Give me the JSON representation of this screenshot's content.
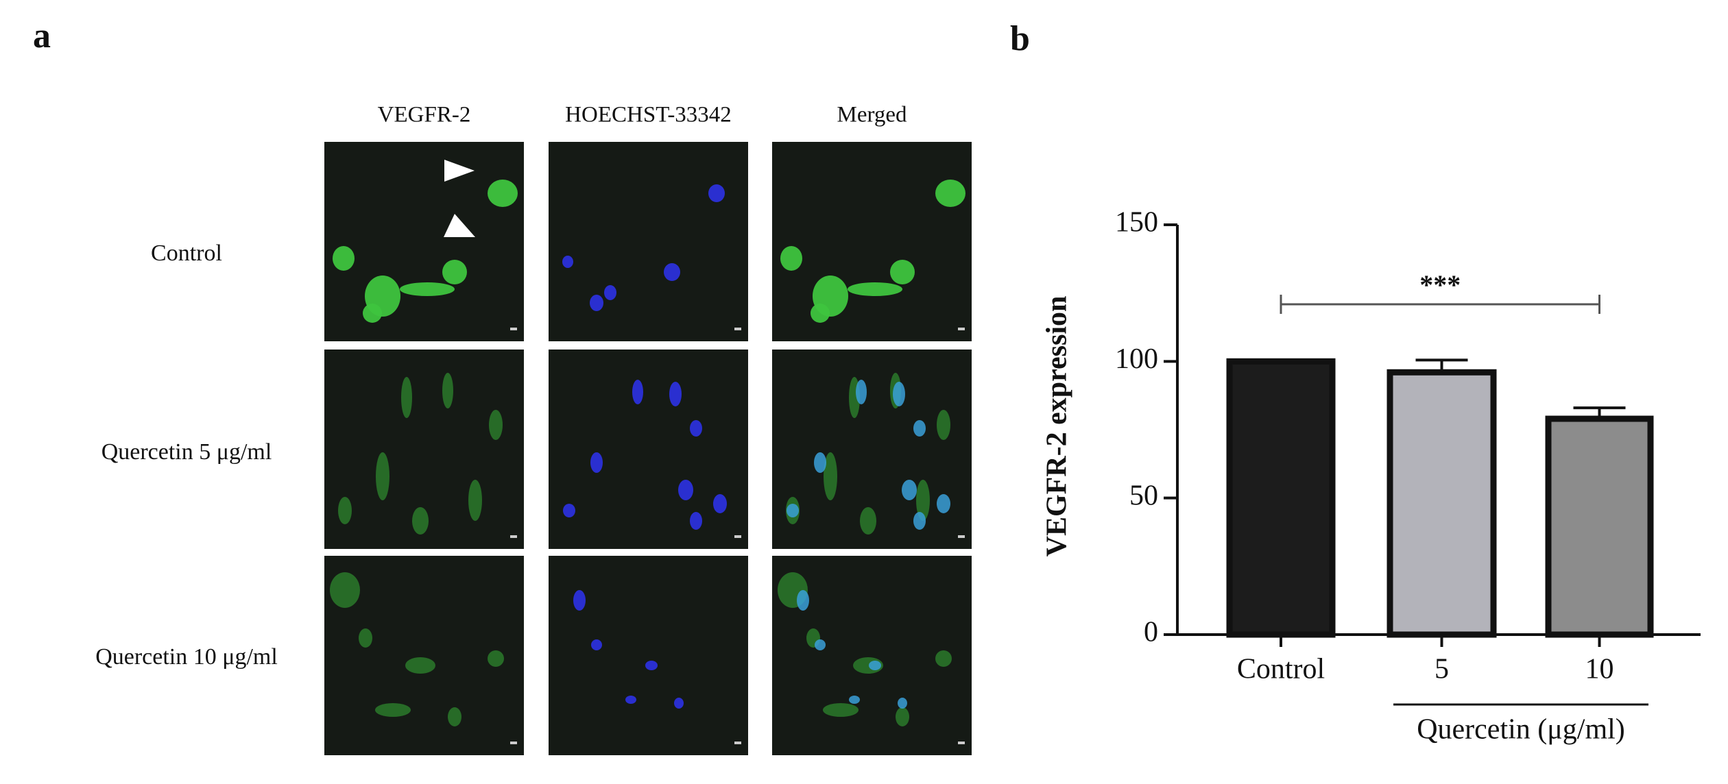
{
  "panel_a": {
    "letter": "a",
    "columns": [
      "VEGFR-2",
      "HOECHST-33342",
      "Merged"
    ],
    "rows": [
      "Control",
      "Quercetin 5 μg/ml",
      "Quercetin 10 μg/ml"
    ]
  },
  "chart_data": {
    "type": "bar",
    "letter": "b",
    "y_label": "VEGFR-2 expression",
    "categories": [
      "Control",
      "5",
      "10"
    ],
    "values": [
      100,
      96,
      79
    ],
    "errors": [
      null,
      4.5,
      4
    ],
    "colors": [
      "#1c1c1c",
      "#b3b3ba",
      "#8c8c8c"
    ],
    "group_label": "Quercetin (μg/ml)",
    "significance": "***",
    "ylim": [
      0,
      150
    ],
    "yticks": [
      0,
      50,
      100,
      150
    ]
  }
}
